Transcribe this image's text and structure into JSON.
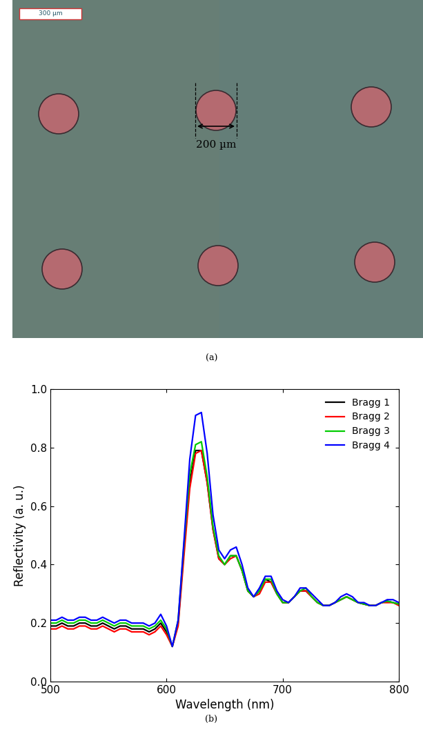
{
  "image_panel": {
    "scale_bar": "300 µm",
    "dimension": "200 µm",
    "label": "(a)"
  },
  "chart_label": "(b)",
  "chart_data": {
    "type": "line",
    "x_label": "Wavelength (nm)",
    "y_label": "Reflectivity (a. u.)",
    "x": [
      500,
      505,
      510,
      515,
      520,
      525,
      530,
      535,
      540,
      545,
      550,
      555,
      560,
      565,
      570,
      575,
      580,
      585,
      590,
      595,
      600,
      605,
      610,
      615,
      620,
      625,
      630,
      635,
      640,
      645,
      650,
      655,
      660,
      665,
      670,
      675,
      680,
      685,
      690,
      695,
      700,
      705,
      710,
      715,
      720,
      725,
      730,
      735,
      740,
      745,
      750,
      755,
      760,
      765,
      770,
      775,
      780,
      785,
      790,
      795,
      800
    ],
    "series": [
      {
        "name": "Bragg 1",
        "color": "#000000",
        "values": [
          0.19,
          0.19,
          0.2,
          0.19,
          0.19,
          0.2,
          0.2,
          0.19,
          0.19,
          0.2,
          0.19,
          0.18,
          0.19,
          0.19,
          0.18,
          0.18,
          0.18,
          0.17,
          0.18,
          0.2,
          0.17,
          0.12,
          0.2,
          0.45,
          0.68,
          0.79,
          0.79,
          0.68,
          0.52,
          0.42,
          0.4,
          0.43,
          0.43,
          0.38,
          0.31,
          0.29,
          0.31,
          0.35,
          0.34,
          0.3,
          0.27,
          0.27,
          0.29,
          0.31,
          0.31,
          0.29,
          0.27,
          0.26,
          0.26,
          0.27,
          0.28,
          0.29,
          0.28,
          0.27,
          0.265,
          0.26,
          0.26,
          0.27,
          0.275,
          0.27,
          0.265
        ]
      },
      {
        "name": "Bragg 2",
        "color": "#ff0000",
        "values": [
          0.18,
          0.18,
          0.19,
          0.18,
          0.18,
          0.19,
          0.19,
          0.18,
          0.18,
          0.19,
          0.18,
          0.17,
          0.18,
          0.18,
          0.17,
          0.17,
          0.17,
          0.16,
          0.17,
          0.19,
          0.16,
          0.12,
          0.19,
          0.43,
          0.66,
          0.78,
          0.79,
          0.68,
          0.52,
          0.42,
          0.4,
          0.42,
          0.43,
          0.38,
          0.31,
          0.29,
          0.3,
          0.34,
          0.34,
          0.3,
          0.27,
          0.27,
          0.29,
          0.31,
          0.31,
          0.29,
          0.27,
          0.26,
          0.26,
          0.27,
          0.28,
          0.29,
          0.28,
          0.27,
          0.265,
          0.26,
          0.26,
          0.27,
          0.27,
          0.27,
          0.26
        ]
      },
      {
        "name": "Bragg 3",
        "color": "#00cc00",
        "values": [
          0.2,
          0.2,
          0.21,
          0.2,
          0.2,
          0.21,
          0.21,
          0.2,
          0.2,
          0.21,
          0.2,
          0.19,
          0.2,
          0.2,
          0.19,
          0.19,
          0.19,
          0.18,
          0.19,
          0.21,
          0.18,
          0.12,
          0.21,
          0.47,
          0.71,
          0.81,
          0.82,
          0.7,
          0.53,
          0.43,
          0.4,
          0.43,
          0.43,
          0.38,
          0.31,
          0.29,
          0.31,
          0.35,
          0.35,
          0.3,
          0.27,
          0.27,
          0.29,
          0.31,
          0.32,
          0.29,
          0.27,
          0.26,
          0.26,
          0.27,
          0.28,
          0.29,
          0.28,
          0.27,
          0.265,
          0.26,
          0.26,
          0.27,
          0.275,
          0.27,
          0.265
        ]
      },
      {
        "name": "Bragg 4",
        "color": "#0000ff",
        "values": [
          0.21,
          0.21,
          0.22,
          0.21,
          0.21,
          0.22,
          0.22,
          0.21,
          0.21,
          0.22,
          0.21,
          0.2,
          0.21,
          0.21,
          0.2,
          0.2,
          0.2,
          0.19,
          0.2,
          0.23,
          0.19,
          0.12,
          0.21,
          0.48,
          0.76,
          0.91,
          0.92,
          0.78,
          0.57,
          0.45,
          0.42,
          0.45,
          0.46,
          0.4,
          0.32,
          0.29,
          0.32,
          0.36,
          0.36,
          0.31,
          0.28,
          0.27,
          0.29,
          0.32,
          0.32,
          0.3,
          0.28,
          0.26,
          0.26,
          0.27,
          0.29,
          0.3,
          0.29,
          0.27,
          0.27,
          0.26,
          0.26,
          0.27,
          0.28,
          0.28,
          0.27
        ]
      }
    ],
    "xlim": [
      500,
      800
    ],
    "xticks": [
      500,
      600,
      700,
      800
    ],
    "ylim": [
      0,
      1
    ],
    "yticks": [
      {
        "value": 0,
        "label": "0.0"
      },
      {
        "value": 0.2,
        "label": "0.2"
      },
      {
        "value": 0.4,
        "label": "0.4"
      },
      {
        "value": 0.6,
        "label": "0.6"
      },
      {
        "value": 0.8,
        "label": "0.8"
      },
      {
        "value": 1,
        "label": "1.0"
      }
    ],
    "legend": "upper right",
    "grid": false
  }
}
